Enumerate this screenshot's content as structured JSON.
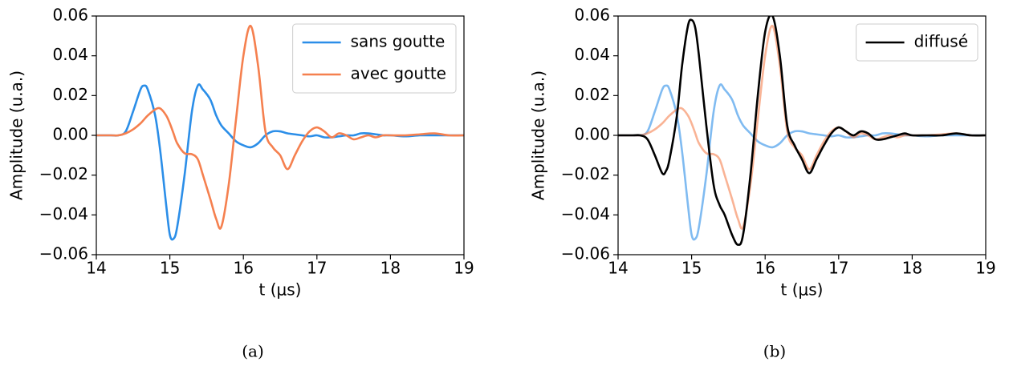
{
  "chart_data": [
    {
      "type": "line",
      "ylabel": "Amplitude (u.a.)",
      "xlabel": "t (μs)",
      "caption": "(a)",
      "legend": "upper right",
      "xlim": [
        14,
        19
      ],
      "ylim": [
        -0.06,
        0.06
      ],
      "xticks": [
        14,
        15,
        16,
        17,
        18,
        19
      ],
      "yticks": [
        {
          "value": -0.06,
          "label": "−0.06"
        },
        {
          "value": -0.04,
          "label": "−0.04"
        },
        {
          "value": -0.02,
          "label": "−0.02"
        },
        {
          "value": 0,
          "label": "0.00"
        },
        {
          "value": 0.02,
          "label": "0.02"
        },
        {
          "value": 0.04,
          "label": "0.04"
        },
        {
          "value": 0.06,
          "label": "0.06"
        }
      ],
      "x": [
        14,
        14.2,
        14.3,
        14.4,
        14.5,
        14.6,
        14.65,
        14.7,
        14.8,
        14.87,
        14.95,
        15.0,
        15.05,
        15.1,
        15.2,
        15.3,
        15.38,
        15.45,
        15.55,
        15.63,
        15.7,
        15.8,
        15.9,
        16.0,
        16.1,
        16.2,
        16.3,
        16.4,
        16.5,
        16.6,
        16.7,
        16.8,
        16.9,
        17.0,
        17.1,
        17.2,
        17.3,
        17.4,
        17.5,
        17.6,
        17.7,
        17.8,
        17.9,
        18.0,
        18.2,
        18.4,
        18.6,
        18.8,
        19
      ],
      "series": [
        {
          "name": "sans goutte",
          "color": "#2b8ee8",
          "values": [
            0,
            0,
            0,
            0.002,
            0.012,
            0.023,
            0.025,
            0.023,
            0.01,
            -0.008,
            -0.035,
            -0.05,
            -0.052,
            -0.046,
            -0.02,
            0.012,
            0.025,
            0.023,
            0.018,
            0.01,
            0.005,
            0.001,
            -0.003,
            -0.005,
            -0.006,
            -0.004,
            0,
            0.002,
            0.002,
            0.001,
            0.0005,
            0,
            -0.0005,
            0,
            -0.001,
            -0.001,
            -0.0005,
            0,
            0,
            0.001,
            0.001,
            0.0005,
            0,
            0,
            -0.0005,
            0,
            0,
            0,
            0
          ]
        },
        {
          "name": "avec goutte",
          "color": "#f5804f",
          "values": [
            0,
            0,
            0,
            0.001,
            0.003,
            0.006,
            0.008,
            0.01,
            0.013,
            0.0135,
            0.01,
            0.006,
            0.001,
            -0.004,
            -0.009,
            -0.0095,
            -0.012,
            -0.02,
            -0.032,
            -0.042,
            -0.046,
            -0.025,
            0.008,
            0.04,
            0.055,
            0.035,
            0.002,
            -0.006,
            -0.01,
            -0.017,
            -0.01,
            -0.003,
            0.002,
            0.004,
            0.002,
            -0.001,
            0.001,
            0,
            -0.002,
            -0.001,
            0,
            -0.001,
            0,
            0,
            0,
            0.0005,
            0.001,
            0,
            0
          ]
        }
      ]
    },
    {
      "type": "line",
      "ylabel": "Amplitude (u.a.)",
      "xlabel": "t (μs)",
      "caption": "(b)",
      "legend": "upper right",
      "xlim": [
        14,
        19
      ],
      "ylim": [
        -0.06,
        0.06
      ],
      "xticks": [
        14,
        15,
        16,
        17,
        18,
        19
      ],
      "yticks": [
        {
          "value": -0.06,
          "label": "−0.06"
        },
        {
          "value": -0.04,
          "label": "−0.04"
        },
        {
          "value": -0.02,
          "label": "−0.02"
        },
        {
          "value": 0,
          "label": "0.00"
        },
        {
          "value": 0.02,
          "label": "0.02"
        },
        {
          "value": 0.04,
          "label": "0.04"
        },
        {
          "value": 0.06,
          "label": "0.06"
        }
      ],
      "x": [
        14,
        14.2,
        14.3,
        14.4,
        14.5,
        14.6,
        14.65,
        14.7,
        14.8,
        14.87,
        14.95,
        15.0,
        15.05,
        15.1,
        15.2,
        15.3,
        15.38,
        15.45,
        15.55,
        15.63,
        15.7,
        15.8,
        15.9,
        16.0,
        16.1,
        16.2,
        16.3,
        16.4,
        16.5,
        16.6,
        16.7,
        16.8,
        16.9,
        17.0,
        17.1,
        17.2,
        17.3,
        17.4,
        17.5,
        17.6,
        17.7,
        17.8,
        17.9,
        18.0,
        18.2,
        18.4,
        18.6,
        18.8,
        19
      ],
      "series": [
        {
          "color": "#2b8ee8",
          "opacity": 0.6,
          "values": [
            0,
            0,
            0,
            0.002,
            0.012,
            0.023,
            0.025,
            0.023,
            0.01,
            -0.008,
            -0.035,
            -0.05,
            -0.052,
            -0.046,
            -0.02,
            0.012,
            0.025,
            0.023,
            0.018,
            0.01,
            0.005,
            0.001,
            -0.003,
            -0.005,
            -0.006,
            -0.004,
            0,
            0.002,
            0.002,
            0.001,
            0.0005,
            0,
            -0.0005,
            0,
            -0.001,
            -0.001,
            -0.0005,
            0,
            0,
            0.001,
            0.001,
            0.0005,
            0,
            0,
            -0.0005,
            0,
            0,
            0,
            0
          ]
        },
        {
          "color": "#f5804f",
          "opacity": 0.6,
          "values": [
            0,
            0,
            0,
            0.001,
            0.003,
            0.006,
            0.008,
            0.01,
            0.013,
            0.0135,
            0.01,
            0.006,
            0.001,
            -0.004,
            -0.009,
            -0.0095,
            -0.012,
            -0.02,
            -0.032,
            -0.042,
            -0.046,
            -0.025,
            0.008,
            0.04,
            0.055,
            0.035,
            0.002,
            -0.006,
            -0.01,
            -0.017,
            -0.01,
            -0.003,
            0.002,
            0.004,
            0.002,
            -0.001,
            0.001,
            0,
            -0.002,
            -0.001,
            0,
            -0.001,
            0,
            0,
            0,
            0.0005,
            0.001,
            0,
            0
          ]
        },
        {
          "name": "diffusé",
          "color": "#000000",
          "values": [
            0,
            0,
            0,
            -0.002,
            -0.01,
            -0.019,
            -0.018,
            -0.012,
            0.01,
            0.035,
            0.055,
            0.058,
            0.054,
            0.04,
            0.005,
            -0.025,
            -0.035,
            -0.04,
            -0.05,
            -0.055,
            -0.05,
            -0.02,
            0.02,
            0.052,
            0.06,
            0.04,
            0.005,
            -0.005,
            -0.012,
            -0.019,
            -0.012,
            -0.005,
            0.001,
            0.004,
            0.002,
            0,
            0.002,
            0.001,
            -0.002,
            -0.002,
            -0.001,
            0,
            0.001,
            0,
            0,
            0,
            0.001,
            0,
            0
          ]
        }
      ]
    }
  ]
}
